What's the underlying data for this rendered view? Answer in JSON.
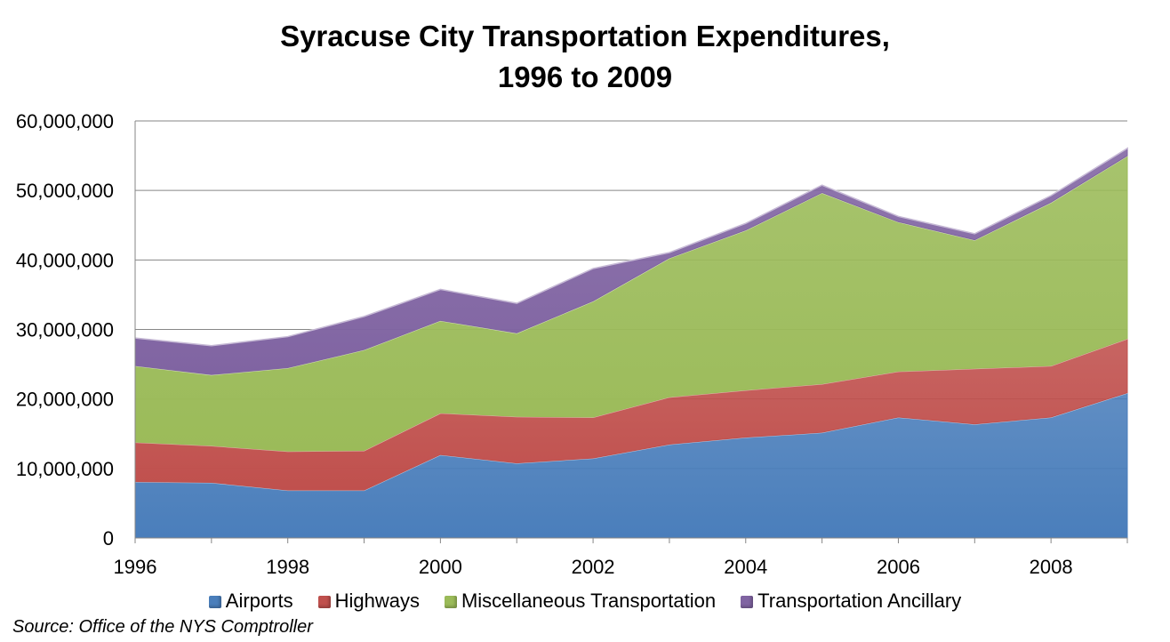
{
  "chart_data": {
    "type": "area",
    "stacked": true,
    "title_lines": [
      "Syracuse City Transportation Expenditures,",
      "1996 to 2009"
    ],
    "x": [
      1996,
      1997,
      1998,
      1999,
      2000,
      2001,
      2002,
      2003,
      2004,
      2005,
      2006,
      2007,
      2008,
      2009
    ],
    "x_tick_labels": [
      "1996",
      "1998",
      "2000",
      "2002",
      "2004",
      "2006",
      "2008"
    ],
    "ylim": [
      0,
      60000000
    ],
    "y_tick_labels": [
      "0",
      "10,000,000",
      "20,000,000",
      "30,000,000",
      "40,000,000",
      "50,000,000",
      "60,000,000"
    ],
    "grid": true,
    "legend_position": "bottom",
    "series": [
      {
        "name": "Airports",
        "color": "#4a7ebb",
        "values": [
          8100000,
          8000000,
          6900000,
          6900000,
          12000000,
          10800000,
          11500000,
          13500000,
          14500000,
          15200000,
          17400000,
          16400000,
          17400000,
          20900000
        ]
      },
      {
        "name": "Highways",
        "color": "#c0504d",
        "values": [
          5700000,
          5300000,
          5600000,
          5700000,
          6000000,
          6700000,
          5900000,
          6800000,
          6800000,
          7000000,
          6600000,
          8000000,
          7400000,
          7800000
        ]
      },
      {
        "name": "Miscellaneous Transportation",
        "color": "#9bbb59",
        "values": [
          11000000,
          10200000,
          12000000,
          14500000,
          13300000,
          12000000,
          16700000,
          20000000,
          23000000,
          27500000,
          21500000,
          18500000,
          23500000,
          26300000
        ]
      },
      {
        "name": "Transportation Ancillary",
        "color": "#8064a2",
        "values": [
          4000000,
          4200000,
          4500000,
          4800000,
          4500000,
          4300000,
          4700000,
          800000,
          1000000,
          1100000,
          800000,
          900000,
          1000000,
          1100000
        ]
      }
    ]
  },
  "source_text": "Source:  Office of the NYS Comptroller"
}
